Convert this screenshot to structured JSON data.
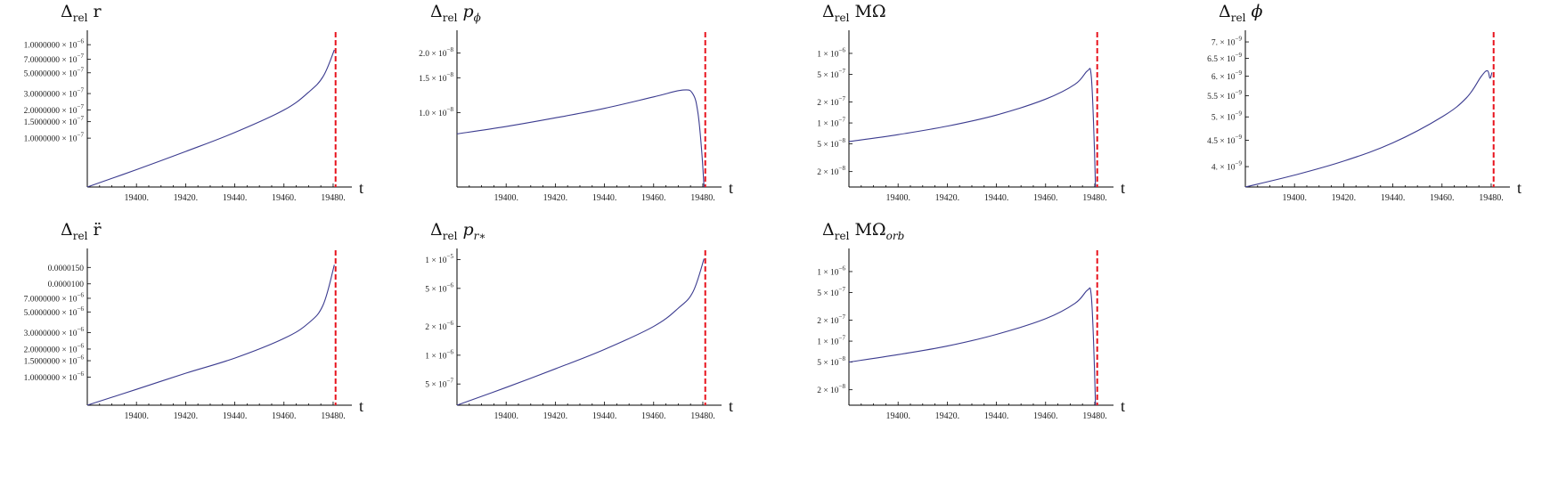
{
  "chart_data": [
    {
      "id": "p1",
      "type": "line",
      "title": {
        "delta": "Δ",
        "sub": "rel",
        "symbol": "r",
        "symbol_sub": ""
      },
      "xlabel": "t",
      "xlim": [
        19380,
        19484
      ],
      "yscale": "log",
      "xticks": [
        "19400.",
        "19420.",
        "19440.",
        "19460.",
        "19480."
      ],
      "yticks": [
        {
          "value": 1e-06,
          "mant": "1.0000000",
          "exp": "−6"
        },
        {
          "value": 7e-07,
          "mant": "7.0000000",
          "exp": "−7"
        },
        {
          "value": 5e-07,
          "mant": "5.0000000",
          "exp": "−7"
        },
        {
          "value": 3e-07,
          "mant": "3.0000000",
          "exp": "−7"
        },
        {
          "value": 2e-07,
          "mant": "2.0000000",
          "exp": "−7"
        },
        {
          "value": 1.5e-07,
          "mant": "1.5000000",
          "exp": "−7"
        },
        {
          "value": 1e-07,
          "mant": "1.0000000",
          "exp": "−7"
        }
      ],
      "ylim": [
        3e-08,
        1.25e-06
      ],
      "series": [
        {
          "color": "#3b3b8f",
          "x": [
            19380,
            19400,
            19420,
            19440,
            19460,
            19470,
            19476,
            19480.5
          ],
          "y": [
            3e-08,
            4.6e-08,
            7.2e-08,
            1.15e-07,
            2e-07,
            3.1e-07,
            4.6e-07,
            8.8e-07
          ]
        }
      ],
      "vline": {
        "x": 19481,
        "color": "#e8141e"
      }
    },
    {
      "id": "p2",
      "type": "line",
      "title": {
        "delta": "Δ",
        "sub": "rel",
        "symbol": "p",
        "symbol_sub": "ϕ"
      },
      "xlabel": "t",
      "xlim": [
        19380,
        19484
      ],
      "yscale": "log",
      "xticks": [
        "19400.",
        "19420.",
        "19440.",
        "19460.",
        "19480."
      ],
      "yticks": [
        {
          "value": 2e-08,
          "mant": "2.0",
          "exp": "−8"
        },
        {
          "value": 1.5e-08,
          "mant": "1.5",
          "exp": "−8"
        },
        {
          "value": 1e-08,
          "mant": "1.0",
          "exp": "−8"
        }
      ],
      "ylim": [
        4.2e-09,
        2.45e-08
      ],
      "series": [
        {
          "color": "#3b3b8f",
          "x": [
            19380,
            19400,
            19420,
            19440,
            19460,
            19472,
            19476,
            19478,
            19479.5,
            19480.5
          ],
          "y": [
            7.8e-09,
            8.5e-09,
            9.4e-09,
            1.05e-08,
            1.2e-08,
            1.3e-08,
            1.24e-08,
            1e-08,
            6.5e-09,
            4.2e-09
          ]
        }
      ],
      "vline": {
        "x": 19481,
        "color": "#e8141e"
      }
    },
    {
      "id": "p3",
      "type": "line",
      "title": {
        "delta": "Δ",
        "sub": "rel",
        "symbol": "MΩ",
        "symbol_sub": ""
      },
      "xlabel": "t",
      "xlim": [
        19380,
        19484
      ],
      "yscale": "log",
      "xticks": [
        "19400.",
        "19420.",
        "19440.",
        "19460.",
        "19480."
      ],
      "yticks": [
        {
          "value": 1e-06,
          "mant": "1",
          "exp": "−6"
        },
        {
          "value": 5e-07,
          "mant": "5",
          "exp": "−7"
        },
        {
          "value": 2e-07,
          "mant": "2",
          "exp": "−7"
        },
        {
          "value": 1e-07,
          "mant": "1",
          "exp": "−7"
        },
        {
          "value": 5e-08,
          "mant": "5",
          "exp": "−8"
        },
        {
          "value": 2e-08,
          "mant": "2",
          "exp": "−8"
        }
      ],
      "ylim": [
        1.2e-08,
        1.8e-06
      ],
      "series": [
        {
          "color": "#3b3b8f",
          "x": [
            19380,
            19400,
            19420,
            19440,
            19460,
            19472,
            19477,
            19478.5,
            19479.5,
            19480.3
          ],
          "y": [
            5.4e-08,
            6.8e-08,
            9e-08,
            1.3e-07,
            2.2e-07,
            3.6e-07,
            5.6e-07,
            5e-07,
            1e-07,
            1.2e-08
          ]
        }
      ],
      "vline": {
        "x": 19481,
        "color": "#e8141e"
      }
    },
    {
      "id": "p4",
      "type": "line",
      "title": {
        "delta": "Δ",
        "sub": "rel",
        "symbol": "ϕ",
        "symbol_sub": ""
      },
      "xlabel": "t",
      "xlim": [
        19380,
        19484
      ],
      "yscale": "log",
      "xticks": [
        "19400.",
        "19420.",
        "19440.",
        "19460.",
        "19480."
      ],
      "yticks": [
        {
          "value": 7e-09,
          "mant": "7.",
          "exp": "−9"
        },
        {
          "value": 6.5e-09,
          "mant": "6.5",
          "exp": "−9"
        },
        {
          "value": 6e-09,
          "mant": "6.",
          "exp": "−9"
        },
        {
          "value": 5.5e-09,
          "mant": "5.5",
          "exp": "−9"
        },
        {
          "value": 5e-09,
          "mant": "5.",
          "exp": "−9"
        },
        {
          "value": 4.5e-09,
          "mant": "4.5",
          "exp": "−9"
        },
        {
          "value": 4e-09,
          "mant": "4.",
          "exp": "−9"
        }
      ],
      "ylim": [
        3.65e-09,
        7.2e-09
      ],
      "series": [
        {
          "color": "#3b3b8f",
          "x": [
            19380,
            19400,
            19420,
            19440,
            19460,
            19470,
            19476,
            19478.5,
            19479.5,
            19480.3
          ],
          "y": [
            3.65e-09,
            3.85e-09,
            4.1e-09,
            4.45e-09,
            5e-09,
            5.45e-09,
            6e-09,
            6.15e-09,
            5.95e-09,
            6.1e-09
          ]
        }
      ],
      "vline": {
        "x": 19481,
        "color": "#e8141e"
      }
    },
    {
      "id": "p5",
      "type": "line",
      "title": {
        "delta": "Δ",
        "sub": "rel",
        "symbol": "r̈",
        "symbol_sub": ""
      },
      "xlabel": "t",
      "xlim": [
        19380,
        19484
      ],
      "yscale": "log",
      "xticks": [
        "19400.",
        "19420.",
        "19440.",
        "19460.",
        "19480."
      ],
      "yticks": [
        {
          "value": 1.5e-05,
          "mant": "0.0000150",
          "exp": ""
        },
        {
          "value": 1e-05,
          "mant": "0.0000100",
          "exp": ""
        },
        {
          "value": 7e-06,
          "mant": "7.0000000",
          "exp": "−6"
        },
        {
          "value": 5e-06,
          "mant": "5.0000000",
          "exp": "−6"
        },
        {
          "value": 3e-06,
          "mant": "3.0000000",
          "exp": "−6"
        },
        {
          "value": 2e-06,
          "mant": "2.0000000",
          "exp": "−6"
        },
        {
          "value": 1.5e-06,
          "mant": "1.5000000",
          "exp": "−6"
        },
        {
          "value": 1e-06,
          "mant": "1.0000000",
          "exp": "−6"
        }
      ],
      "ylim": [
        5e-07,
        2.1e-05
      ],
      "series": [
        {
          "color": "#3b3b8f",
          "x": [
            19380,
            19400,
            19420,
            19440,
            19460,
            19470,
            19476,
            19480.5
          ],
          "y": [
            5e-07,
            7.4e-07,
            1.1e-06,
            1.6e-06,
            2.6e-06,
            3.8e-06,
            6e-06,
            1.6e-05
          ]
        }
      ],
      "vline": {
        "x": 19481,
        "color": "#e8141e"
      }
    },
    {
      "id": "p6",
      "type": "line",
      "title": {
        "delta": "Δ",
        "sub": "rel",
        "symbol": "p",
        "symbol_sub": "r∗"
      },
      "xlabel": "t",
      "xlim": [
        19380,
        19484
      ],
      "yscale": "log",
      "xticks": [
        "19400.",
        "19420.",
        "19440.",
        "19460.",
        "19480."
      ],
      "yticks": [
        {
          "value": 1e-05,
          "mant": "1",
          "exp": "−5"
        },
        {
          "value": 5e-06,
          "mant": "5",
          "exp": "−6"
        },
        {
          "value": 2e-06,
          "mant": "2",
          "exp": "−6"
        },
        {
          "value": 1e-06,
          "mant": "1",
          "exp": "−6"
        },
        {
          "value": 5e-07,
          "mant": "5",
          "exp": "−7"
        }
      ],
      "ylim": [
        3e-07,
        1.15e-05
      ],
      "series": [
        {
          "color": "#3b3b8f",
          "x": [
            19380,
            19400,
            19420,
            19440,
            19460,
            19470,
            19476,
            19480.5
          ],
          "y": [
            3e-07,
            4.6e-07,
            7.2e-07,
            1.15e-06,
            2e-06,
            3.1e-06,
            4.6e-06,
            1.02e-05
          ]
        }
      ],
      "vline": {
        "x": 19481,
        "color": "#e8141e"
      }
    },
    {
      "id": "p7",
      "type": "line",
      "title": {
        "delta": "Δ",
        "sub": "rel",
        "symbol": "MΩ",
        "symbol_sub": "orb"
      },
      "xlabel": "t",
      "xlim": [
        19380,
        19484
      ],
      "yscale": "log",
      "xticks": [
        "19400.",
        "19420.",
        "19440.",
        "19460.",
        "19480."
      ],
      "yticks": [
        {
          "value": 1e-06,
          "mant": "1",
          "exp": "−6"
        },
        {
          "value": 5e-07,
          "mant": "5",
          "exp": "−7"
        },
        {
          "value": 2e-07,
          "mant": "2",
          "exp": "−7"
        },
        {
          "value": 1e-07,
          "mant": "1",
          "exp": "−7"
        },
        {
          "value": 5e-08,
          "mant": "5",
          "exp": "−8"
        },
        {
          "value": 2e-08,
          "mant": "2",
          "exp": "−8"
        }
      ],
      "ylim": [
        1.2e-08,
        1.8e-06
      ],
      "series": [
        {
          "color": "#3b3b8f",
          "x": [
            19380,
            19400,
            19420,
            19440,
            19460,
            19472,
            19477,
            19478.5,
            19479.5,
            19480.3
          ],
          "y": [
            5e-08,
            6.4e-08,
            8.5e-08,
            1.25e-07,
            2.1e-07,
            3.5e-07,
            5.4e-07,
            4.8e-07,
            1e-07,
            1.2e-08
          ]
        }
      ],
      "vline": {
        "x": 19481,
        "color": "#e8141e"
      }
    }
  ]
}
